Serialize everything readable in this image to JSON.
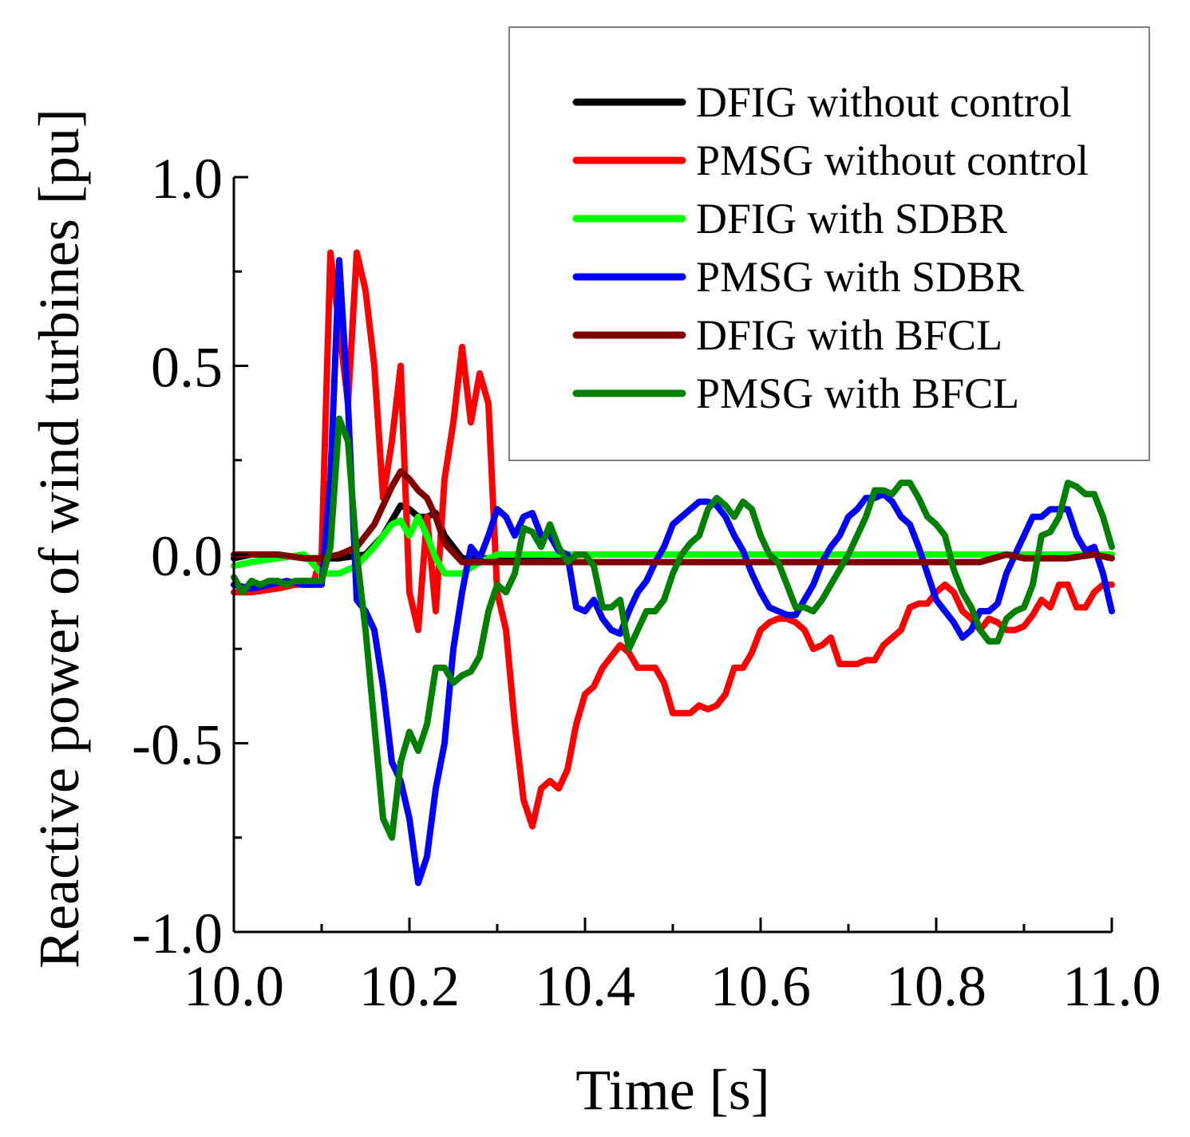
{
  "chart_data": {
    "type": "line",
    "title": "",
    "xlabel": "Time [s]",
    "ylabel": "Reactive power of wind turbines [pu]",
    "xlim": [
      10.0,
      11.0
    ],
    "ylim": [
      -1.0,
      1.0
    ],
    "xticks": [
      "10.0",
      "10.2",
      "10.4",
      "10.6",
      "10.8",
      "11.0"
    ],
    "yticks": [
      "1.0",
      "0.5",
      "0.0",
      "-0.5",
      "-1.0"
    ],
    "legend_position": "top-right",
    "grid": false,
    "series": [
      {
        "name": "DFIG without control",
        "color": "#000000",
        "x": [
          10.0,
          10.02,
          10.05,
          10.08,
          10.1,
          10.12,
          10.15,
          10.17,
          10.19,
          10.2,
          10.21,
          10.22,
          10.23,
          10.24,
          10.26,
          10.3,
          10.4,
          10.5,
          10.6,
          10.7,
          10.8,
          10.9,
          10.95,
          11.0
        ],
        "y": [
          -0.01,
          0.0,
          0.0,
          -0.01,
          -0.01,
          -0.01,
          0.0,
          0.05,
          0.13,
          0.12,
          0.1,
          0.1,
          0.11,
          0.05,
          -0.01,
          -0.01,
          0.0,
          0.0,
          0.0,
          0.0,
          0.0,
          0.0,
          0.0,
          0.0
        ]
      },
      {
        "name": "PMSG without control",
        "color": "#ff0000",
        "x": [
          10.0,
          10.02,
          10.05,
          10.07,
          10.09,
          10.1,
          10.11,
          10.12,
          10.13,
          10.14,
          10.15,
          10.16,
          10.17,
          10.18,
          10.19,
          10.2,
          10.21,
          10.22,
          10.23,
          10.24,
          10.25,
          10.26,
          10.27,
          10.28,
          10.29,
          10.3,
          10.31,
          10.32,
          10.33,
          10.34,
          10.35,
          10.36,
          10.37,
          10.38,
          10.39,
          10.4,
          10.41,
          10.42,
          10.43,
          10.44,
          10.45,
          10.46,
          10.47,
          10.48,
          10.49,
          10.5,
          10.51,
          10.52,
          10.53,
          10.54,
          10.55,
          10.56,
          10.57,
          10.58,
          10.59,
          10.6,
          10.61,
          10.62,
          10.63,
          10.64,
          10.65,
          10.66,
          10.67,
          10.68,
          10.69,
          10.7,
          10.71,
          10.72,
          10.73,
          10.74,
          10.75,
          10.76,
          10.77,
          10.78,
          10.79,
          10.8,
          10.81,
          10.82,
          10.83,
          10.84,
          10.85,
          10.86,
          10.87,
          10.88,
          10.89,
          10.9,
          10.91,
          10.92,
          10.93,
          10.94,
          10.95,
          10.96,
          10.97,
          10.98,
          10.99,
          11.0
        ],
        "y": [
          -0.1,
          -0.1,
          -0.09,
          -0.08,
          -0.08,
          0.0,
          0.8,
          0.6,
          0.4,
          0.8,
          0.7,
          0.5,
          0.15,
          0.3,
          0.5,
          -0.1,
          -0.2,
          0.1,
          -0.15,
          0.2,
          0.35,
          0.55,
          0.35,
          0.48,
          0.4,
          -0.1,
          -0.2,
          -0.45,
          -0.65,
          -0.72,
          -0.62,
          -0.6,
          -0.62,
          -0.57,
          -0.45,
          -0.37,
          -0.35,
          -0.3,
          -0.27,
          -0.24,
          -0.26,
          -0.3,
          -0.3,
          -0.3,
          -0.34,
          -0.42,
          -0.42,
          -0.42,
          -0.4,
          -0.41,
          -0.4,
          -0.37,
          -0.3,
          -0.3,
          -0.26,
          -0.2,
          -0.18,
          -0.17,
          -0.17,
          -0.18,
          -0.2,
          -0.25,
          -0.24,
          -0.22,
          -0.29,
          -0.29,
          -0.29,
          -0.28,
          -0.28,
          -0.24,
          -0.22,
          -0.2,
          -0.14,
          -0.13,
          -0.13,
          -0.1,
          -0.08,
          -0.1,
          -0.15,
          -0.17,
          -0.2,
          -0.17,
          -0.18,
          -0.2,
          -0.2,
          -0.19,
          -0.16,
          -0.12,
          -0.14,
          -0.08,
          -0.08,
          -0.14,
          -0.14,
          -0.1,
          -0.08,
          -0.08
        ]
      },
      {
        "name": "DFIG with SDBR",
        "color": "#00ff00",
        "x": [
          10.0,
          10.02,
          10.05,
          10.08,
          10.1,
          10.12,
          10.14,
          10.16,
          10.18,
          10.19,
          10.2,
          10.21,
          10.22,
          10.23,
          10.24,
          10.25,
          10.26,
          10.28,
          10.3,
          10.35,
          10.4,
          10.45,
          10.5,
          10.55,
          10.6,
          10.65,
          10.7,
          10.75,
          10.8,
          10.85,
          10.9,
          10.95,
          11.0
        ],
        "y": [
          -0.03,
          -0.02,
          -0.01,
          0.0,
          -0.05,
          -0.05,
          -0.03,
          0.02,
          0.08,
          0.09,
          0.05,
          0.1,
          0.05,
          -0.01,
          -0.05,
          -0.05,
          -0.05,
          -0.02,
          0.0,
          0.0,
          0.0,
          0.0,
          0.0,
          0.0,
          0.0,
          0.0,
          0.0,
          0.0,
          0.0,
          0.0,
          0.0,
          0.0,
          0.0
        ]
      },
      {
        "name": "PMSG with SDBR",
        "color": "#0000ff",
        "x": [
          10.0,
          10.02,
          10.04,
          10.06,
          10.08,
          10.1,
          10.11,
          10.12,
          10.13,
          10.14,
          10.15,
          10.16,
          10.17,
          10.18,
          10.19,
          10.2,
          10.21,
          10.22,
          10.23,
          10.24,
          10.25,
          10.26,
          10.27,
          10.28,
          10.29,
          10.3,
          10.31,
          10.32,
          10.33,
          10.34,
          10.35,
          10.36,
          10.37,
          10.38,
          10.39,
          10.4,
          10.41,
          10.42,
          10.43,
          10.44,
          10.45,
          10.46,
          10.47,
          10.48,
          10.49,
          10.5,
          10.51,
          10.52,
          10.53,
          10.54,
          10.55,
          10.56,
          10.57,
          10.58,
          10.59,
          10.6,
          10.61,
          10.62,
          10.63,
          10.64,
          10.65,
          10.66,
          10.67,
          10.68,
          10.69,
          10.7,
          10.71,
          10.72,
          10.73,
          10.74,
          10.75,
          10.76,
          10.77,
          10.78,
          10.79,
          10.8,
          10.81,
          10.82,
          10.83,
          10.84,
          10.85,
          10.86,
          10.87,
          10.88,
          10.89,
          10.9,
          10.91,
          10.92,
          10.93,
          10.94,
          10.95,
          10.96,
          10.97,
          10.98,
          10.99,
          11.0
        ],
        "y": [
          -0.08,
          -0.09,
          -0.08,
          -0.07,
          -0.08,
          -0.08,
          0.2,
          0.78,
          0.4,
          -0.12,
          -0.15,
          -0.2,
          -0.35,
          -0.55,
          -0.6,
          -0.7,
          -0.87,
          -0.8,
          -0.62,
          -0.5,
          -0.25,
          -0.1,
          0.02,
          -0.01,
          0.05,
          0.12,
          0.1,
          0.05,
          0.1,
          0.11,
          0.05,
          0.05,
          0.01,
          0.0,
          -0.14,
          -0.15,
          -0.12,
          -0.17,
          -0.2,
          -0.21,
          -0.15,
          -0.1,
          -0.07,
          -0.02,
          0.02,
          0.08,
          0.1,
          0.12,
          0.14,
          0.14,
          0.13,
          0.1,
          0.05,
          0.01,
          -0.05,
          -0.1,
          -0.14,
          -0.15,
          -0.16,
          -0.16,
          -0.12,
          -0.08,
          -0.02,
          0.02,
          0.05,
          0.1,
          0.12,
          0.15,
          0.15,
          0.16,
          0.14,
          0.1,
          0.08,
          0.02,
          -0.05,
          -0.12,
          -0.15,
          -0.18,
          -0.22,
          -0.2,
          -0.15,
          -0.15,
          -0.13,
          -0.05,
          0.0,
          0.05,
          0.1,
          0.1,
          0.12,
          0.12,
          0.12,
          0.05,
          0.01,
          0.02,
          -0.05,
          -0.15
        ]
      },
      {
        "name": "DFIG with BFCL",
        "color": "#800000",
        "x": [
          10.0,
          10.02,
          10.05,
          10.08,
          10.1,
          10.12,
          10.14,
          10.16,
          10.18,
          10.19,
          10.2,
          10.21,
          10.22,
          10.23,
          10.24,
          10.26,
          10.28,
          10.3,
          10.35,
          10.4,
          10.45,
          10.5,
          10.55,
          10.6,
          10.65,
          10.7,
          10.75,
          10.8,
          10.85,
          10.88,
          10.9,
          10.95,
          10.98,
          11.0
        ],
        "y": [
          0.0,
          0.0,
          0.0,
          -0.01,
          -0.01,
          0.0,
          0.02,
          0.08,
          0.18,
          0.22,
          0.2,
          0.17,
          0.15,
          0.1,
          0.03,
          -0.02,
          -0.02,
          -0.02,
          -0.02,
          -0.02,
          -0.02,
          -0.02,
          -0.02,
          -0.02,
          -0.02,
          -0.02,
          -0.02,
          -0.02,
          -0.02,
          0.0,
          -0.01,
          -0.01,
          0.0,
          -0.01
        ]
      },
      {
        "name": "PMSG with BFCL",
        "color": "#008000",
        "x": [
          10.0,
          10.01,
          10.02,
          10.03,
          10.04,
          10.05,
          10.06,
          10.07,
          10.08,
          10.09,
          10.1,
          10.11,
          10.12,
          10.13,
          10.14,
          10.15,
          10.16,
          10.17,
          10.18,
          10.19,
          10.2,
          10.21,
          10.22,
          10.23,
          10.24,
          10.25,
          10.26,
          10.27,
          10.28,
          10.29,
          10.3,
          10.31,
          10.32,
          10.33,
          10.34,
          10.35,
          10.36,
          10.37,
          10.38,
          10.39,
          10.4,
          10.41,
          10.42,
          10.43,
          10.44,
          10.45,
          10.46,
          10.47,
          10.48,
          10.49,
          10.5,
          10.51,
          10.52,
          10.53,
          10.54,
          10.55,
          10.56,
          10.57,
          10.58,
          10.59,
          10.6,
          10.61,
          10.62,
          10.63,
          10.64,
          10.65,
          10.66,
          10.67,
          10.68,
          10.69,
          10.7,
          10.71,
          10.72,
          10.73,
          10.74,
          10.75,
          10.76,
          10.77,
          10.78,
          10.79,
          10.8,
          10.81,
          10.82,
          10.83,
          10.84,
          10.85,
          10.86,
          10.87,
          10.88,
          10.89,
          10.9,
          10.91,
          10.92,
          10.93,
          10.94,
          10.95,
          10.96,
          10.97,
          10.98,
          10.99,
          11.0
        ],
        "y": [
          -0.06,
          -0.1,
          -0.07,
          -0.08,
          -0.07,
          -0.07,
          -0.08,
          -0.07,
          -0.07,
          -0.07,
          -0.07,
          0.02,
          0.36,
          0.3,
          0.0,
          -0.2,
          -0.45,
          -0.7,
          -0.75,
          -0.55,
          -0.47,
          -0.52,
          -0.45,
          -0.3,
          -0.3,
          -0.34,
          -0.32,
          -0.31,
          -0.27,
          -0.15,
          -0.08,
          -0.1,
          -0.05,
          0.07,
          0.06,
          0.02,
          0.08,
          0.02,
          -0.02,
          0.0,
          0.0,
          -0.03,
          -0.14,
          -0.14,
          -0.12,
          -0.25,
          -0.2,
          -0.15,
          -0.15,
          -0.12,
          -0.05,
          0.0,
          0.03,
          0.05,
          0.12,
          0.15,
          0.13,
          0.1,
          0.14,
          0.12,
          0.05,
          0.0,
          -0.02,
          -0.08,
          -0.14,
          -0.14,
          -0.15,
          -0.12,
          -0.08,
          -0.04,
          0.0,
          0.05,
          0.1,
          0.17,
          0.17,
          0.16,
          0.19,
          0.19,
          0.15,
          0.1,
          0.08,
          0.05,
          -0.04,
          -0.1,
          -0.14,
          -0.2,
          -0.23,
          -0.23,
          -0.17,
          -0.15,
          -0.14,
          -0.08,
          0.05,
          0.06,
          0.1,
          0.19,
          0.18,
          0.16,
          0.16,
          0.1,
          0.02
        ]
      }
    ]
  }
}
